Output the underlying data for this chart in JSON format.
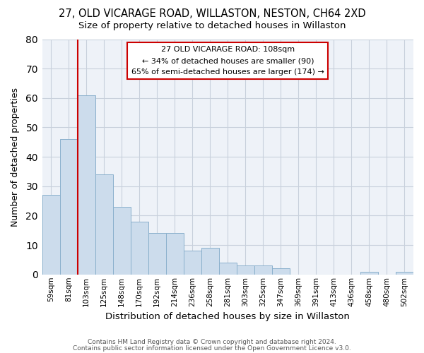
{
  "title1": "27, OLD VICARAGE ROAD, WILLASTON, NESTON, CH64 2XD",
  "title2": "Size of property relative to detached houses in Willaston",
  "xlabel": "Distribution of detached houses by size in Willaston",
  "ylabel": "Number of detached properties",
  "footer1": "Contains HM Land Registry data © Crown copyright and database right 2024.",
  "footer2": "Contains public sector information licensed under the Open Government Licence v3.0.",
  "categories": [
    "59sqm",
    "81sqm",
    "103sqm",
    "125sqm",
    "148sqm",
    "170sqm",
    "192sqm",
    "214sqm",
    "236sqm",
    "258sqm",
    "281sqm",
    "303sqm",
    "325sqm",
    "347sqm",
    "369sqm",
    "391sqm",
    "413sqm",
    "436sqm",
    "458sqm",
    "480sqm",
    "502sqm"
  ],
  "values": [
    27,
    46,
    61,
    34,
    23,
    18,
    14,
    14,
    8,
    9,
    4,
    3,
    3,
    2,
    0,
    0,
    0,
    0,
    1,
    0,
    1
  ],
  "bar_color": "#ccdcec",
  "bar_edge_color": "#8ab0cc",
  "vline_color": "#cc0000",
  "vline_index": 2,
  "annotation_text1": "27 OLD VICARAGE ROAD: 108sqm",
  "annotation_text2": "← 34% of detached houses are smaller (90)",
  "annotation_text3": "65% of semi-detached houses are larger (174) →",
  "ylim": [
    0,
    80
  ],
  "yticks": [
    0,
    10,
    20,
    30,
    40,
    50,
    60,
    70,
    80
  ],
  "grid_color": "#c8d0dc",
  "plot_bg_color": "#eef2f8"
}
